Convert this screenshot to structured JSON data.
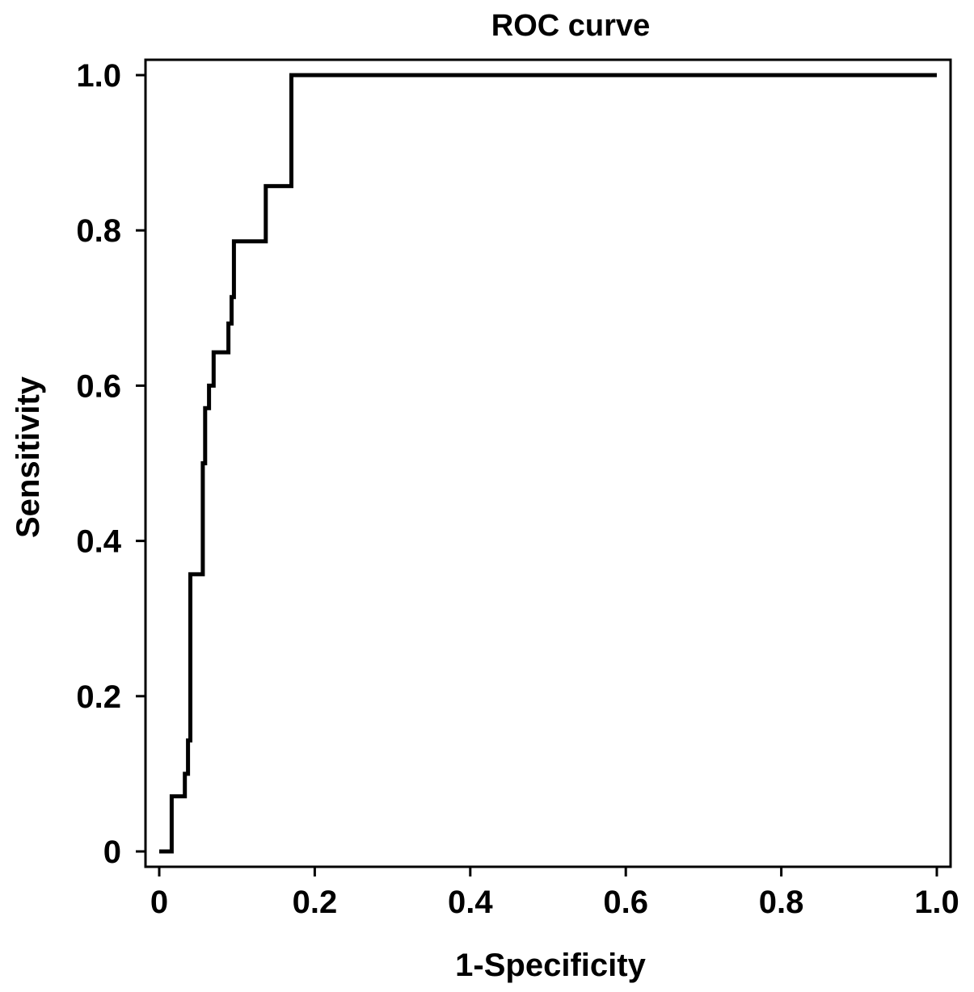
{
  "chart_data": {
    "type": "line",
    "title": "ROC curve",
    "xlabel": "1-Specificity",
    "ylabel": "Sensitivity",
    "xlim": [
      0,
      1
    ],
    "ylim": [
      0,
      1
    ],
    "x_ticks": [
      0,
      0.2,
      0.4,
      0.6,
      0.8,
      1.0
    ],
    "x_tick_labels": [
      "0",
      "0.2",
      "0.4",
      "0.6",
      "0.8",
      "1.0"
    ],
    "y_ticks": [
      0,
      0.2,
      0.4,
      0.6,
      0.8,
      1.0
    ],
    "y_tick_labels": [
      "0",
      "0.2",
      "0.4",
      "0.6",
      "0.8",
      "1.0"
    ],
    "grid": false,
    "legend": false,
    "line_color": "#000000",
    "series": [
      {
        "x": [
          0,
          0.016,
          0.016,
          0.033,
          0.033,
          0.037,
          0.037,
          0.04,
          0.04,
          0.056,
          0.056,
          0.059,
          0.059,
          0.064,
          0.064,
          0.07,
          0.07,
          0.089,
          0.089,
          0.093,
          0.093,
          0.096,
          0.096,
          0.137,
          0.137,
          0.17,
          0.17,
          1.0
        ],
        "y": [
          0,
          0,
          0.071,
          0.071,
          0.1,
          0.1,
          0.143,
          0.143,
          0.357,
          0.357,
          0.5,
          0.5,
          0.571,
          0.571,
          0.6,
          0.6,
          0.643,
          0.643,
          0.68,
          0.68,
          0.714,
          0.714,
          0.786,
          0.786,
          0.857,
          0.857,
          1.0,
          1.0
        ]
      }
    ]
  }
}
